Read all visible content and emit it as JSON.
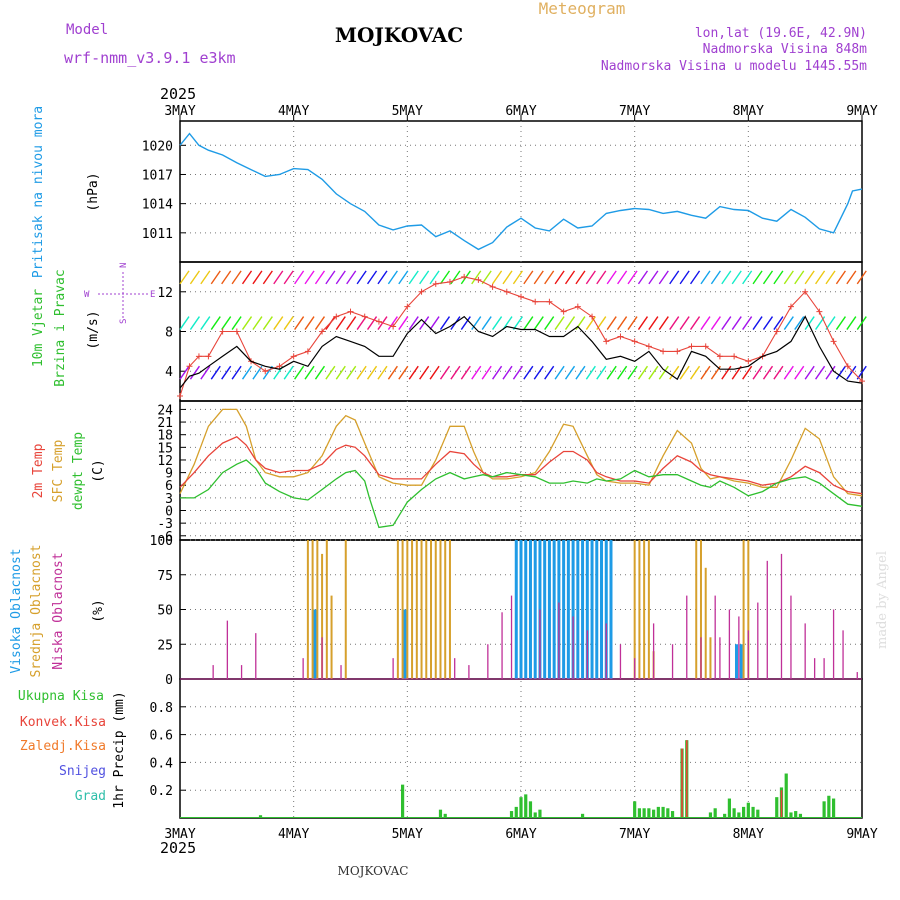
{
  "header": {
    "title": "MOJKOVAC",
    "meteogram": "Meteogram",
    "model_label": "Model",
    "model_name": "wrf-nmm_v3.9.1 e3km",
    "coords": "lon,lat (19.6E, 42.9N)",
    "elevation": "Nadmorska Visina 848m",
    "model_elevation": "Nadmorska Visina u modelu 1445.55m",
    "footer_title": "MOJKOVAC",
    "credit": "made by Angel"
  },
  "time_axis": {
    "year": "2025",
    "days": [
      "3MAY",
      "4MAY",
      "5MAY",
      "6MAY",
      "7MAY",
      "8MAY",
      "9MAY"
    ]
  },
  "panel_labels": {
    "pressure": [
      "Pritisak na nivou mora",
      "(hPa)"
    ],
    "wind": [
      "10m Vjetar",
      "Brzina i Pravac",
      "(m/s)"
    ],
    "compass": [
      "N",
      "W",
      "E",
      "S"
    ],
    "temp": [
      "2m Temp",
      "SFC Temp",
      "dewpt Temp",
      "(C)"
    ],
    "cloud": [
      "Visoka Oblacnost",
      "Srednja Oblacnost",
      "Niska Oblacnost",
      "(%)"
    ],
    "precip": [
      "Ukupna Kisa",
      "Konvek.Kisa",
      "Zaledj.Kisa",
      "Snijeg",
      "Grad",
      "1hr Precip (mm)"
    ]
  },
  "colors": {
    "pressure": "#1e9be6",
    "temp2m": "#e8443a",
    "sfc": "#d6a02c",
    "dewpt": "#2fbf2f",
    "high_cloud": "#1e9be6",
    "mid_cloud": "#d6a02c",
    "low_cloud": "#c03098",
    "total_rain": "#2fbf2f",
    "conv_rain": "#e8443a",
    "frz_rain": "#f07a2a",
    "snow": "#5050e0",
    "graupel": "#2fbfaa",
    "title_purple": "#a040d0",
    "meteogram_gold": "#e0b060"
  },
  "chart_data": [
    {
      "type": "line",
      "name": "sea level pressure",
      "ylabel": "hPa",
      "ylim": [
        1008,
        1022.5
      ],
      "yticks": [
        1011,
        1014,
        1017,
        1020
      ],
      "x": [
        0,
        2,
        4,
        6,
        9,
        12,
        15,
        18,
        21,
        24,
        27,
        30,
        33,
        36,
        39,
        42,
        45,
        48,
        51,
        54,
        57,
        60,
        63,
        66,
        69,
        72,
        75,
        78,
        81,
        84,
        87,
        90,
        93,
        96,
        99,
        102,
        105,
        108,
        111,
        114,
        117,
        120,
        123,
        126,
        129,
        132,
        135,
        138,
        141,
        142,
        144
      ],
      "values": [
        1020,
        1021.2,
        1020,
        1019.5,
        1019,
        1018.2,
        1017.5,
        1016.8,
        1017,
        1017.6,
        1017.5,
        1016.5,
        1015,
        1014,
        1013.2,
        1011.8,
        1011.3,
        1011.7,
        1011.8,
        1010.6,
        1011.2,
        1010.2,
        1009.3,
        1010,
        1011.6,
        1012.5,
        1011.5,
        1011.2,
        1012.4,
        1011.5,
        1011.7,
        1013,
        1013.3,
        1013.5,
        1013.4,
        1013,
        1013.2,
        1012.8,
        1012.5,
        1013.7,
        1013.4,
        1013.3,
        1012.5,
        1012.2,
        1013.4,
        1012.6,
        1011.4,
        1011,
        1014,
        1015.3,
        1015.5
      ]
    },
    {
      "type": "line",
      "name": "10m wind speed",
      "ylabel": "m/s",
      "ylim": [
        1,
        15
      ],
      "yticks": [
        4,
        8,
        12
      ],
      "series": [
        {
          "name": "wind speed",
          "x": [
            0,
            2,
            4,
            6,
            9,
            12,
            15,
            18,
            21,
            24,
            27,
            30,
            33,
            36,
            39,
            42,
            45,
            48,
            51,
            54,
            57,
            60,
            63,
            66,
            69,
            72,
            75,
            78,
            81,
            84,
            87,
            90,
            93,
            96,
            99,
            102,
            105,
            108,
            111,
            114,
            117,
            120,
            123,
            126,
            129,
            132,
            135,
            138,
            141,
            144
          ],
          "values": [
            2.3,
            3.5,
            3.8,
            4.5,
            5.5,
            6.5,
            5,
            4.5,
            4.2,
            5,
            4.5,
            6.5,
            7.5,
            7,
            6.5,
            5.5,
            5.5,
            7.8,
            9.2,
            7.8,
            8.5,
            9.5,
            8,
            7.5,
            8.5,
            8.2,
            8.2,
            7.5,
            7.5,
            8.5,
            7,
            5.2,
            5.5,
            5,
            6,
            4.2,
            3.2,
            6,
            5.5,
            4.2,
            4.2,
            4.5,
            5.5,
            6,
            7,
            9.5,
            6.5,
            4,
            3,
            2.8
          ]
        },
        {
          "name": "gust",
          "x": [
            0,
            2,
            4,
            6,
            9,
            12,
            15,
            18,
            21,
            24,
            27,
            30,
            33,
            36,
            39,
            42,
            45,
            48,
            51,
            54,
            57,
            60,
            63,
            66,
            69,
            72,
            75,
            78,
            81,
            84,
            87,
            90,
            93,
            96,
            99,
            102,
            105,
            108,
            111,
            114,
            117,
            120,
            123,
            126,
            129,
            132,
            135,
            138,
            141,
            144
          ],
          "values": [
            1.5,
            4.5,
            5.5,
            5.5,
            8,
            8,
            5,
            4,
            4.5,
            5.5,
            6,
            8,
            9.5,
            10,
            9.5,
            9,
            8.5,
            10.5,
            12,
            12.8,
            13,
            13.5,
            13.2,
            12.5,
            12,
            11.5,
            11,
            11,
            10,
            10.5,
            9.5,
            7,
            7.5,
            7,
            6.5,
            6,
            6,
            6.5,
            6.5,
            5.5,
            5.5,
            5,
            5.5,
            8,
            10.5,
            12,
            10,
            7,
            4.5,
            3
          ]
        }
      ]
    },
    {
      "type": "line",
      "name": "temperature",
      "ylabel": "C",
      "ylim": [
        -7,
        26
      ],
      "yticks": [
        -6,
        -3,
        0,
        3,
        6,
        9,
        12,
        15,
        18,
        21,
        24
      ],
      "series": [
        {
          "name": "2m Temp",
          "x": [
            0,
            3,
            6,
            9,
            12,
            14,
            16,
            18,
            21,
            24,
            27,
            30,
            33,
            35,
            37,
            39,
            42,
            45,
            48,
            51,
            54,
            57,
            60,
            62,
            64,
            66,
            69,
            72,
            75,
            78,
            81,
            83,
            86,
            88,
            90,
            93,
            96,
            99,
            102,
            105,
            108,
            110,
            112,
            114,
            117,
            120,
            123,
            126,
            129,
            132,
            135,
            138,
            141,
            144
          ],
          "values": [
            5.5,
            9,
            13,
            16,
            17.5,
            15.5,
            12,
            10,
            9,
            9.5,
            9.5,
            11,
            14.5,
            15.5,
            15,
            13,
            8.5,
            7.5,
            7.5,
            7.5,
            11,
            14,
            13.5,
            11,
            9,
            8,
            8,
            8.5,
            8.5,
            11.5,
            14,
            14,
            12,
            9,
            8,
            7,
            7,
            6.5,
            10,
            13,
            11.5,
            9.5,
            8.5,
            8,
            7.5,
            7,
            6,
            6.5,
            8,
            10.5,
            9,
            6,
            4.5,
            4
          ]
        },
        {
          "name": "SFC Temp",
          "x": [
            0,
            3,
            6,
            9,
            12,
            14,
            16,
            18,
            21,
            24,
            27,
            30,
            33,
            35,
            37,
            39,
            42,
            45,
            48,
            51,
            54,
            57,
            60,
            62,
            64,
            66,
            69,
            72,
            75,
            78,
            81,
            83,
            86,
            88,
            90,
            93,
            96,
            99,
            102,
            105,
            108,
            110,
            112,
            114,
            117,
            120,
            123,
            126,
            129,
            132,
            135,
            138,
            141,
            144
          ],
          "values": [
            4,
            11,
            20,
            24,
            24,
            20,
            12,
            9,
            8,
            8,
            9,
            13,
            20,
            22.5,
            21.5,
            16,
            8,
            6.5,
            6,
            6,
            12,
            20,
            20,
            14,
            9,
            7.5,
            7.5,
            8,
            9,
            14,
            20.5,
            20,
            13,
            8.5,
            7,
            6.5,
            6.5,
            6,
            13,
            19,
            16,
            10,
            7.5,
            8,
            7,
            6.5,
            5.5,
            5.5,
            12,
            19.5,
            17,
            8,
            4,
            3.5
          ]
        },
        {
          "name": "dewpt Temp",
          "x": [
            0,
            3,
            6,
            9,
            12,
            14,
            16,
            18,
            21,
            24,
            27,
            30,
            33,
            35,
            37,
            39,
            40,
            42,
            45,
            48,
            51,
            54,
            57,
            60,
            62,
            64,
            66,
            69,
            72,
            75,
            78,
            81,
            83,
            86,
            88,
            90,
            93,
            96,
            99,
            102,
            105,
            108,
            110,
            112,
            114,
            117,
            120,
            123,
            126,
            129,
            132,
            135,
            138,
            141,
            144
          ],
          "values": [
            3,
            3,
            5,
            9,
            11,
            12,
            10,
            6.5,
            4.5,
            3,
            2.5,
            5,
            7.5,
            9,
            9.5,
            7,
            3,
            -4,
            -3.5,
            2,
            5,
            7.5,
            9,
            7.5,
            8,
            8.5,
            8,
            9,
            8.5,
            8,
            6.5,
            6.5,
            7,
            6.5,
            7.5,
            7,
            7.5,
            9.5,
            8,
            8.5,
            8.5,
            7,
            6,
            5.5,
            7,
            5.5,
            3.5,
            4.5,
            6.5,
            7.5,
            8,
            6.5,
            4,
            1.5,
            1
          ]
        }
      ]
    },
    {
      "type": "bar",
      "name": "cloud cover",
      "ylabel": "%",
      "ylim": [
        0,
        100
      ],
      "yticks": [
        0,
        25,
        50,
        75,
        100
      ],
      "series": [
        {
          "name": "Visoka Oblacnost",
          "x": [
            28.5,
            47.5,
            71,
            72,
            73,
            74,
            75,
            76,
            77,
            78,
            79,
            80,
            81,
            82,
            83,
            84,
            85,
            86,
            87,
            88,
            89,
            90,
            91,
            117.5,
            118.5
          ],
          "values": [
            50,
            50,
            100,
            100,
            100,
            100,
            100,
            100,
            100,
            100,
            100,
            100,
            100,
            100,
            100,
            100,
            100,
            100,
            100,
            100,
            100,
            100,
            100,
            25,
            25
          ]
        },
        {
          "name": "Srednja Oblacnost",
          "x": [
            27,
            28,
            29,
            30,
            31,
            32,
            35,
            46,
            47,
            48,
            49,
            50,
            51,
            52,
            53,
            54,
            55,
            56,
            57,
            96,
            97,
            98,
            99,
            100,
            109,
            110,
            111,
            112,
            119,
            120
          ],
          "values": [
            100,
            100,
            100,
            90,
            100,
            60,
            100,
            100,
            100,
            100,
            100,
            100,
            100,
            100,
            100,
            100,
            100,
            100,
            100,
            100,
            100,
            100,
            100,
            20,
            100,
            100,
            80,
            30,
            100,
            100
          ]
        },
        {
          "name": "Niska Oblacnost",
          "x": [
            7,
            10,
            13,
            16,
            26,
            30,
            34,
            45,
            58,
            61,
            65,
            68,
            70,
            76,
            80,
            83,
            86,
            90,
            93,
            96,
            100,
            104,
            107,
            110,
            113,
            114,
            116,
            118,
            120,
            122,
            124,
            127,
            129,
            132,
            134,
            136,
            138,
            140,
            143
          ],
          "values": [
            10,
            42,
            10,
            33,
            15,
            30,
            10,
            15,
            15,
            10,
            25,
            48,
            60,
            50,
            55,
            45,
            35,
            40,
            25,
            15,
            40,
            25,
            60,
            30,
            60,
            30,
            50,
            45,
            35,
            55,
            85,
            90,
            60,
            40,
            15,
            15,
            50,
            35,
            5
          ]
        }
      ]
    },
    {
      "type": "bar",
      "name": "1hr precipitation",
      "ylabel": "mm",
      "ylim": [
        0,
        1.0
      ],
      "yticks": [
        0.2,
        0.4,
        0.6,
        0.8
      ],
      "series": [
        {
          "name": "Ukupna Kisa",
          "x": [
            17,
            47,
            55,
            56,
            70,
            71,
            72,
            73,
            74,
            75,
            76,
            85,
            96,
            97,
            98,
            99,
            100,
            101,
            102,
            103,
            104,
            106,
            107,
            112,
            113,
            115,
            116,
            117,
            118,
            119,
            120,
            121,
            122,
            126,
            127,
            128,
            129,
            130,
            131,
            136,
            137,
            138
          ],
          "values": [
            0.02,
            0.24,
            0.06,
            0.03,
            0.05,
            0.08,
            0.15,
            0.17,
            0.12,
            0.04,
            0.06,
            0.03,
            0.12,
            0.07,
            0.07,
            0.07,
            0.06,
            0.08,
            0.08,
            0.07,
            0.05,
            0.5,
            0.56,
            0.04,
            0.07,
            0.03,
            0.14,
            0.07,
            0.04,
            0.08,
            0.11,
            0.08,
            0.06,
            0.15,
            0.22,
            0.32,
            0.04,
            0.05,
            0.03,
            0.12,
            0.16,
            0.14
          ]
        },
        {
          "name": "Konvek.Kisa",
          "x": [
            106,
            107,
            127
          ],
          "values": [
            0.5,
            0.56,
            0.2
          ]
        }
      ]
    }
  ]
}
